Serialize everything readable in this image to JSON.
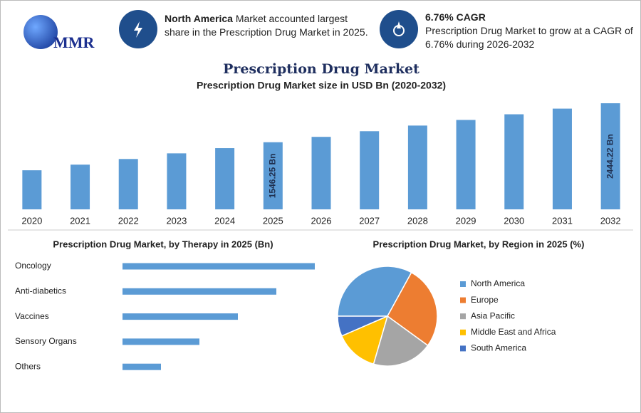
{
  "header": {
    "logo": "MMR",
    "stats": [
      {
        "heading": "North America",
        "text": "Market accounted largest share in the Prescription Drug Market in 2025."
      },
      {
        "heading": "6.76% CAGR",
        "text": "Prescription Drug Market to grow at a CAGR of 6.76% during 2026-2032"
      }
    ]
  },
  "title": "Prescription Drug Market",
  "chart_data": [
    {
      "type": "bar",
      "title": "Prescription Drug Market size in USD Bn (2020-2032)",
      "categories": [
        "2020",
        "2021",
        "2022",
        "2023",
        "2024",
        "2025",
        "2026",
        "2027",
        "2028",
        "2029",
        "2030",
        "2031",
        "2032"
      ],
      "values": [
        900,
        1030,
        1160,
        1290,
        1410,
        1546.25,
        1670,
        1800,
        1930,
        2060,
        2190,
        2320,
        2444.22
      ],
      "value_labels": [
        null,
        null,
        null,
        null,
        null,
        "1546.25 Bn",
        null,
        null,
        null,
        null,
        null,
        null,
        "2444.22 Bn"
      ],
      "color": "#5b9bd5"
    },
    {
      "type": "hbar",
      "title": "Prescription Drug Market, by Therapy in 2025 (Bn)",
      "categories": [
        "Oncology",
        "Anti-diabetics",
        "Vaccines",
        "Sensory Organs",
        "Others"
      ],
      "values": [
        250,
        200,
        150,
        100,
        50
      ],
      "color": "#5b9bd5"
    },
    {
      "type": "pie",
      "title": "Prescription Drug Market, by Region in 2025 (%)",
      "categories": [
        "North America",
        "Europe",
        "Asia Pacific",
        "Middle East and Africa",
        "South America"
      ],
      "values": [
        33,
        27,
        19.5,
        14,
        6.5
      ],
      "colors": [
        "#5b9bd5",
        "#ed7d31",
        "#a5a5a5",
        "#ffc000",
        "#4472c4"
      ]
    }
  ]
}
